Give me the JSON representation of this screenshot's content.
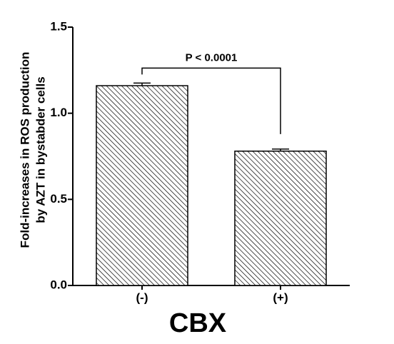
{
  "chart_data": {
    "type": "bar",
    "y_label_lines": [
      "Fold-increases in ROS  production",
      "by AZT in bystabder cells"
    ],
    "x_label": "CBX",
    "categories": [
      "(-)",
      "(+)"
    ],
    "values": [
      1.16,
      0.78
    ],
    "errors": [
      0.015,
      0.012
    ],
    "color": "#000000",
    "hatch": true,
    "ylim": [
      0,
      1.5
    ],
    "yticks": [
      {
        "value": 0,
        "label": "0.0"
      },
      0.5,
      {
        "value": 1,
        "label": "1.0"
      },
      1.5
    ],
    "annotation": "P < 0.0001"
  }
}
